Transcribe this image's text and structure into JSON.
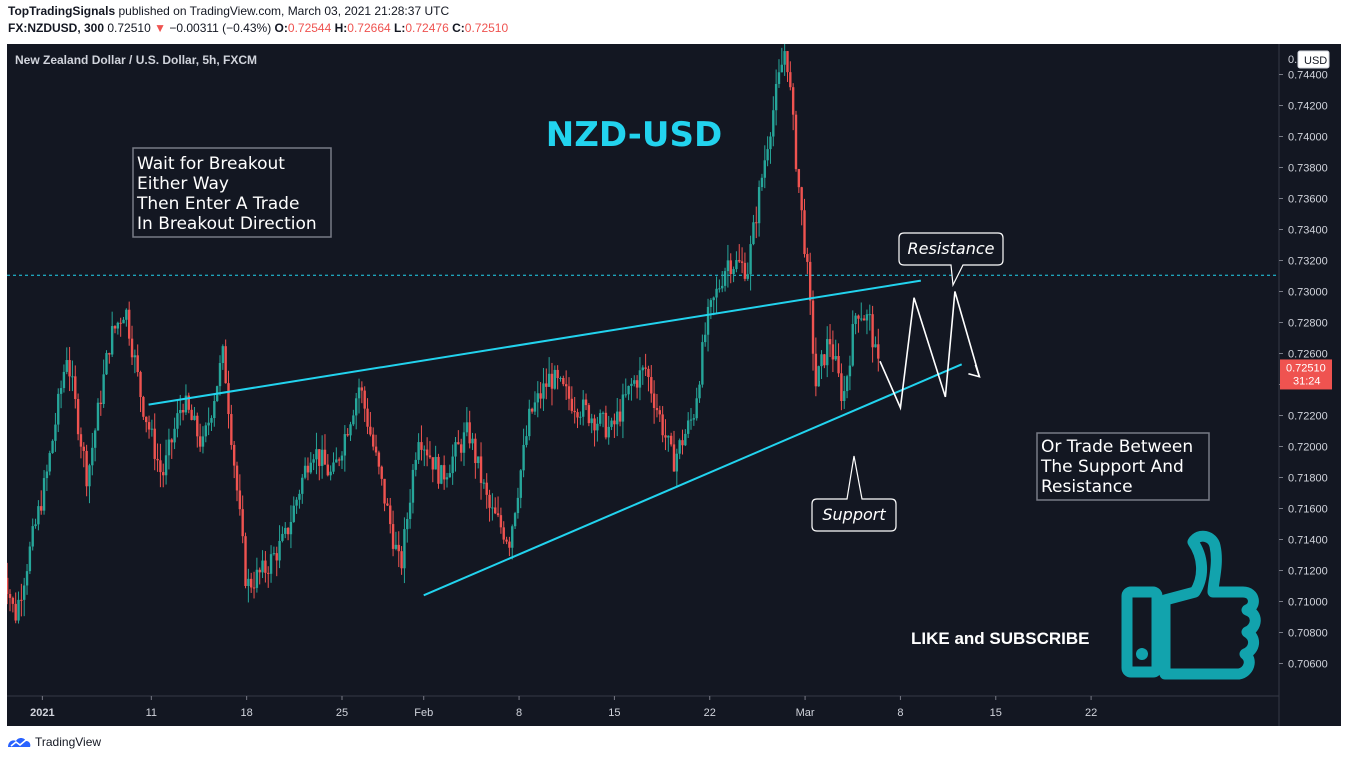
{
  "header": {
    "author": "TopTradingSignals",
    "published": "published on TradingView.com, March 03, 2021 21:28:37 UTC",
    "symbol": "FX:NZDUSD, 300",
    "last": "0.72510",
    "change": "−0.00311 (−0.43%)",
    "open_label": "O:",
    "open": "0.72544",
    "high_label": "H:",
    "high": "0.72664",
    "low_label": "L:",
    "low": "0.72476",
    "close_label": "C:",
    "close": "0.72510"
  },
  "footer": {
    "brand": "TradingView"
  },
  "colors": {
    "background": "#131722",
    "up": "#26a69a",
    "down": "#ef5350",
    "trendline": "#22d3ee",
    "resistance_dashed": "#22d3ee",
    "annotation_text": "#ffffff",
    "title": "#22d3ee",
    "thumb_icon": "#12a3ad"
  },
  "chart_data": {
    "type": "candlestick",
    "title": "New Zealand Dollar / U.S. Dollar, 5h, FXCM",
    "currency": "USD",
    "ylim": [
      0.705,
      0.748
    ],
    "y_ticks": [
      0.706,
      0.708,
      0.71,
      0.712,
      0.714,
      0.716,
      0.718,
      0.72,
      0.722,
      0.724,
      0.726,
      0.728,
      0.73,
      0.732,
      0.734,
      0.736,
      0.738,
      0.74,
      0.742,
      0.744
    ],
    "y_tick_labels": [
      "0.70600",
      "0.70800",
      "0.71000",
      "0.71200",
      "0.71400",
      "0.71600",
      "0.71800",
      "0.72000",
      "0.72200",
      "0.72400",
      "0.72600",
      "0.72800",
      "0.73000",
      "0.73200",
      "0.73400",
      "0.73600",
      "0.73800",
      "0.74000",
      "0.74200",
      "0.74400"
    ],
    "x_ticks": [
      {
        "label": "2021",
        "bold": true
      },
      {
        "label": "11"
      },
      {
        "label": "18"
      },
      {
        "label": "25"
      },
      {
        "label": "Feb",
        "bold": false
      },
      {
        "label": "8"
      },
      {
        "label": "15"
      },
      {
        "label": "22"
      },
      {
        "label": "Mar",
        "bold": false
      },
      {
        "label": "8"
      },
      {
        "label": "15"
      },
      {
        "label": "22"
      }
    ],
    "x_days_from_start": [
      3,
      11,
      18,
      25,
      31,
      38,
      45,
      52,
      59,
      66,
      73,
      80
    ],
    "first_day": "Dec 31",
    "xlim_days": [
      0.0,
      99.0
    ],
    "last_price_label": "0.72510",
    "countdown_label": "31:24",
    "last_price": 0.7251,
    "resistance_level": 0.73105,
    "waypoints": [
      {
        "t": 0.0,
        "p": 0.7135
      },
      {
        "t": 1.2,
        "p": 0.709
      },
      {
        "t": 3.5,
        "p": 0.718
      },
      {
        "t": 5.0,
        "p": 0.726
      },
      {
        "t": 6.5,
        "p": 0.718
      },
      {
        "t": 8.2,
        "p": 0.727
      },
      {
        "t": 9.3,
        "p": 0.729
      },
      {
        "t": 10.5,
        "p": 0.723
      },
      {
        "t": 12.0,
        "p": 0.718
      },
      {
        "t": 13.5,
        "p": 0.723
      },
      {
        "t": 15.0,
        "p": 0.72
      },
      {
        "t": 16.5,
        "p": 0.726
      },
      {
        "t": 18.2,
        "p": 0.711
      },
      {
        "t": 19.5,
        "p": 0.712
      },
      {
        "t": 21.0,
        "p": 0.714
      },
      {
        "t": 23.0,
        "p": 0.72
      },
      {
        "t": 24.5,
        "p": 0.718
      },
      {
        "t": 26.5,
        "p": 0.724
      },
      {
        "t": 28.0,
        "p": 0.718
      },
      {
        "t": 29.5,
        "p": 0.712
      },
      {
        "t": 30.8,
        "p": 0.721
      },
      {
        "t": 32.5,
        "p": 0.718
      },
      {
        "t": 34.5,
        "p": 0.721
      },
      {
        "t": 36.0,
        "p": 0.716
      },
      {
        "t": 37.5,
        "p": 0.714
      },
      {
        "t": 39.0,
        "p": 0.722
      },
      {
        "t": 40.5,
        "p": 0.7245
      },
      {
        "t": 42.0,
        "p": 0.723
      },
      {
        "t": 43.5,
        "p": 0.722
      },
      {
        "t": 45.0,
        "p": 0.721
      },
      {
        "t": 46.5,
        "p": 0.724
      },
      {
        "t": 47.5,
        "p": 0.725
      },
      {
        "t": 48.5,
        "p": 0.722
      },
      {
        "t": 49.5,
        "p": 0.719
      },
      {
        "t": 51.0,
        "p": 0.722
      },
      {
        "t": 52.0,
        "p": 0.728
      },
      {
        "t": 53.5,
        "p": 0.732
      },
      {
        "t": 55.0,
        "p": 0.7315
      },
      {
        "t": 56.5,
        "p": 0.74
      },
      {
        "t": 57.8,
        "p": 0.746
      },
      {
        "t": 58.6,
        "p": 0.738
      },
      {
        "t": 59.3,
        "p": 0.732
      },
      {
        "t": 60.0,
        "p": 0.724
      },
      {
        "t": 61.0,
        "p": 0.727
      },
      {
        "t": 62.0,
        "p": 0.723
      },
      {
        "t": 63.0,
        "p": 0.729
      },
      {
        "t": 64.0,
        "p": 0.728
      },
      {
        "t": 64.5,
        "p": 0.7251
      }
    ],
    "annotations": {
      "chart_title": "NZD-USD",
      "box_left": [
        "Wait for Breakout",
        "Either Way",
        "Then Enter A Trade",
        "In Breakout Direction"
      ],
      "box_right": [
        "Or Trade Between",
        "The Support And",
        "Resistance"
      ],
      "resistance_callout": "Resistance",
      "support_callout": "Support",
      "cta": "LIKE and SUBSCRIBE"
    },
    "trendlines": {
      "upper": [
        {
          "t": 10.8,
          "p": 0.7227
        },
        {
          "t": 67.5,
          "p": 0.7307
        }
      ],
      "lower": [
        {
          "t": 31.0,
          "p": 0.7104
        },
        {
          "t": 70.5,
          "p": 0.7253
        }
      ]
    },
    "projection_zigzag": [
      {
        "t": 64.5,
        "p": 0.7255
      },
      {
        "t": 66.0,
        "p": 0.7225
      },
      {
        "t": 67.0,
        "p": 0.7296
      },
      {
        "t": 69.3,
        "p": 0.7232
      },
      {
        "t": 70.0,
        "p": 0.73
      },
      {
        "t": 71.8,
        "p": 0.7245
      }
    ]
  }
}
